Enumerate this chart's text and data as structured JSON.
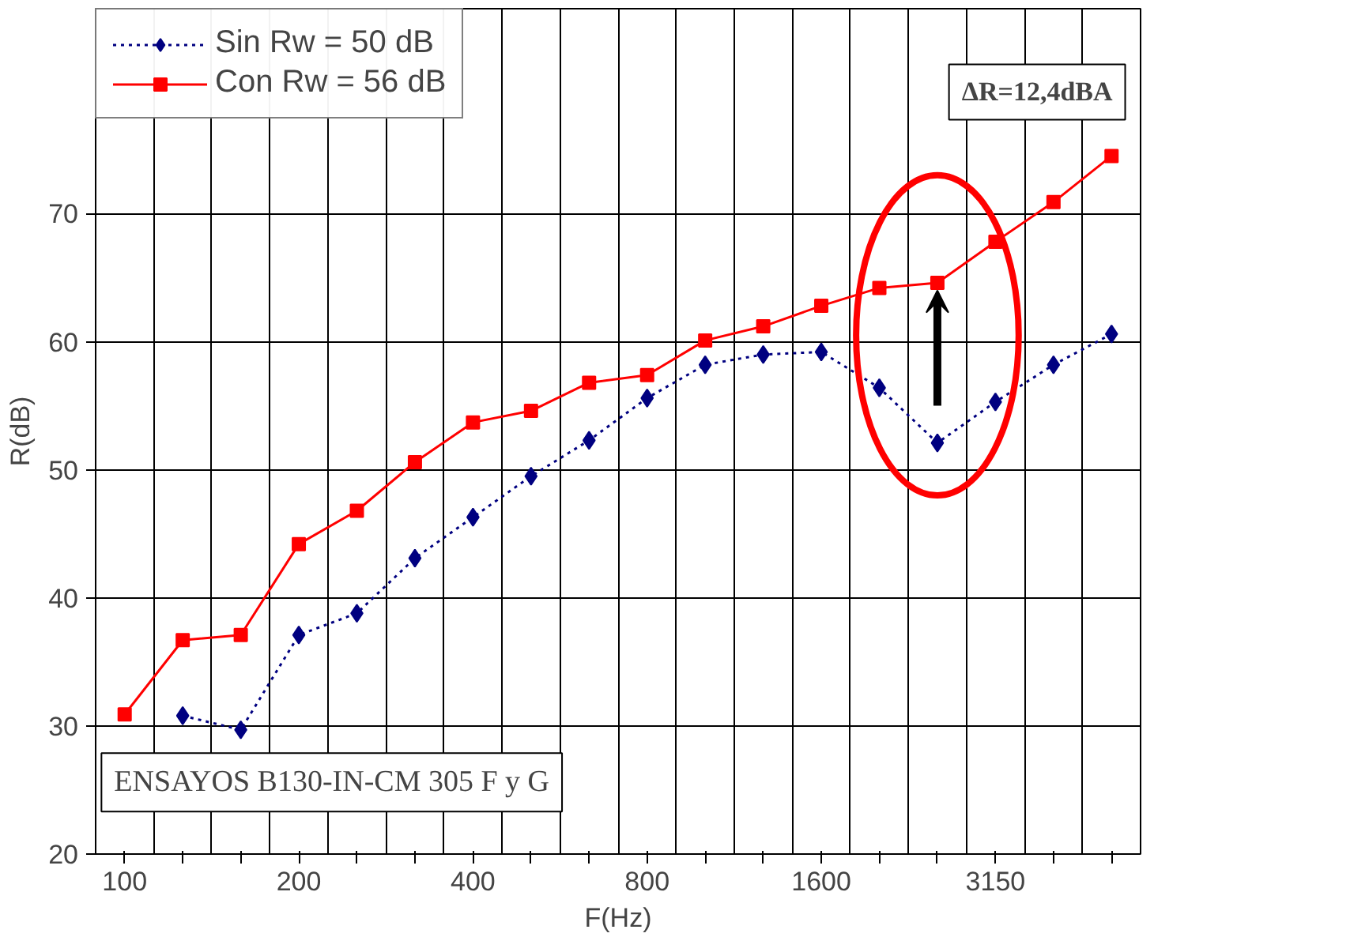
{
  "chart_data": {
    "type": "line",
    "xlabel": "F(Hz)",
    "ylabel": "R(dB)",
    "categories": [
      "100",
      null,
      null,
      "200",
      null,
      null,
      "400",
      null,
      null,
      "800",
      null,
      null,
      "1600",
      null,
      null,
      "3150",
      null,
      null
    ],
    "series": [
      {
        "name": "Sin Rw = 50 dB",
        "color": "#000080",
        "marker": "diamond",
        "line_style": "dotted",
        "values": [
          null,
          30.8,
          29.7,
          37.1,
          38.8,
          43.1,
          46.3,
          49.5,
          52.3,
          55.6,
          58.2,
          59.0,
          59.2,
          56.4,
          52.1,
          55.3,
          58.2,
          60.6
        ]
      },
      {
        "name": "Con Rw = 56 dB",
        "color": "#ff0000",
        "marker": "square",
        "line_style": "solid",
        "values": [
          30.9,
          36.7,
          37.1,
          44.2,
          46.8,
          50.6,
          53.7,
          54.6,
          56.8,
          57.4,
          60.1,
          61.2,
          62.8,
          64.2,
          64.6,
          67.8,
          70.9,
          74.5
        ]
      }
    ],
    "ylim": [
      20,
      86
    ],
    "yticks": [
      20,
      30,
      40,
      50,
      60,
      70
    ],
    "grid": true,
    "legend": "top left",
    "annotations": [
      "ΔR=12,4dBA",
      "ENSAYOS B130-IN-CM 305 F y G"
    ]
  }
}
